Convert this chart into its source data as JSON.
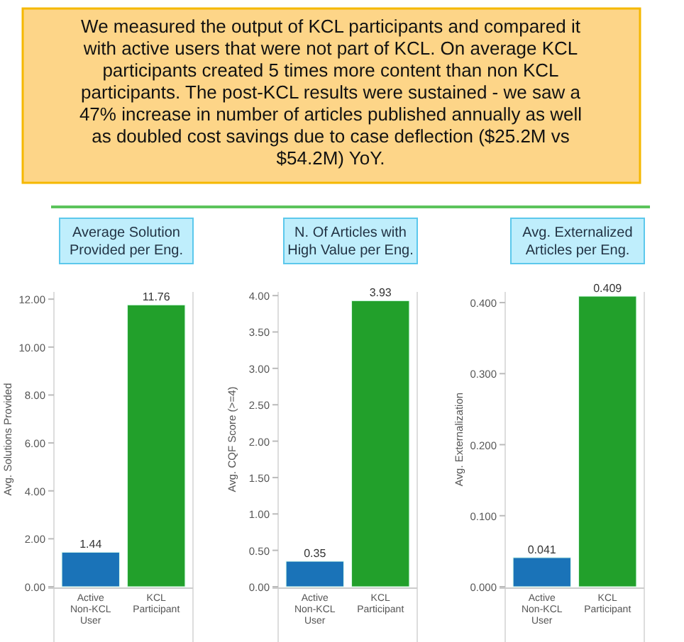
{
  "chart_data": [
    {
      "type": "other",
      "annotations": [
        "We measured the output of KCL participants and compared it with active users that were not part of KCL. On average KCL participants created 5 times more content than non KCL participants. The post-KCL results were sustained - we saw a 47% increase in number of articles published annually as well as doubled cost savings due to case deflection ($25.2M vs $54.2M) YoY."
      ]
    },
    {
      "type": "bar",
      "title": "Average Solution Provided per Eng.",
      "ylabel": "Avg. Solutions Provided",
      "categories": [
        "Active Non-KCL User",
        "KCL Participant"
      ],
      "values": [
        1.44,
        11.76
      ],
      "colors": [
        "#1a73b8",
        "#22a02b"
      ],
      "data_labels": true,
      "ylim": [
        0,
        12.3
      ],
      "yticks": [
        {
          "value": 0,
          "label": "0.00"
        },
        {
          "value": 2,
          "label": "2.00"
        },
        {
          "value": 4,
          "label": "4.00"
        },
        {
          "value": 6,
          "label": "6.00"
        },
        {
          "value": 8,
          "label": "8.00"
        },
        {
          "value": 10,
          "label": "10.00"
        },
        {
          "value": 12,
          "label": "12.00"
        }
      ]
    },
    {
      "type": "bar",
      "title": "N. Of Articles with High Value per Eng.",
      "ylabel": "Avg. CQF Score (>=4)",
      "categories": [
        "Active Non-KCL User",
        "KCL Participant"
      ],
      "values": [
        0.35,
        3.93
      ],
      "colors": [
        "#1a73b8",
        "#22a02b"
      ],
      "data_labels": true,
      "ylim": [
        0,
        4.05
      ],
      "yticks": [
        {
          "value": 0,
          "label": "0.00"
        },
        {
          "value": 0.5,
          "label": "0.50"
        },
        {
          "value": 1,
          "label": "1.00"
        },
        {
          "value": 1.5,
          "label": "1.50"
        },
        {
          "value": 2,
          "label": "2.00"
        },
        {
          "value": 2.5,
          "label": "2.50"
        },
        {
          "value": 3,
          "label": "3.00"
        },
        {
          "value": 3.5,
          "label": "3.50"
        },
        {
          "value": 4,
          "label": "4.00"
        }
      ]
    },
    {
      "type": "bar",
      "title": "Avg. Externalized Articles per Eng.",
      "ylabel": "Avg. Externalization",
      "categories": [
        "Active Non-KCL User",
        "KCL Participant"
      ],
      "values": [
        0.041,
        0.409
      ],
      "colors": [
        "#1a73b8",
        "#22a02b"
      ],
      "data_labels": true,
      "ylim": [
        0,
        0.415
      ],
      "yticks": [
        {
          "value": 0,
          "label": "0.000"
        },
        {
          "value": 0.1,
          "label": "0.100"
        },
        {
          "value": 0.2,
          "label": "0.200"
        },
        {
          "value": 0.3,
          "label": "0.300"
        },
        {
          "value": 0.4,
          "label": "0.400"
        }
      ]
    }
  ]
}
